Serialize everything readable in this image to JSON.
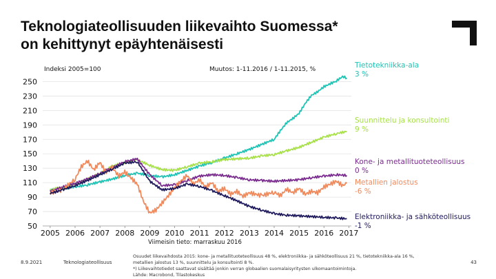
{
  "title": {
    "line1": "Teknologiateollisuuden liikevaihto Suomessa*",
    "line2": "on kehittynyt epäyhtenäisesti"
  },
  "chart_data": {
    "type": "line",
    "index_label": "Indeksi 2005=100",
    "change_label": "Muutos: 1-11.2016 / 1-11.2015, %",
    "latest_label": "Viimeisin tieto: marraskuu 2016",
    "ylim": [
      50,
      260
    ],
    "yticks": [
      50,
      70,
      90,
      110,
      130,
      150,
      170,
      190,
      210,
      230,
      250
    ],
    "xlim": [
      2004.7,
      2017.1
    ],
    "xticks": [
      "2005",
      "2006",
      "2007",
      "2008",
      "2009",
      "2010",
      "2011",
      "2012",
      "2013",
      "2014",
      "2015",
      "2016",
      "2017"
    ],
    "series": [
      {
        "name": "Tietotekniikka-ala",
        "change": "3 %",
        "color": "#1ec3b4",
        "points": [
          [
            2005.0,
            100
          ],
          [
            2005.5,
            102
          ],
          [
            2006.0,
            104
          ],
          [
            2006.5,
            107
          ],
          [
            2007.0,
            111
          ],
          [
            2007.5,
            115
          ],
          [
            2008.0,
            120
          ],
          [
            2008.5,
            123
          ],
          [
            2009.0,
            120
          ],
          [
            2009.5,
            118
          ],
          [
            2010.0,
            121
          ],
          [
            2010.5,
            127
          ],
          [
            2011.0,
            133
          ],
          [
            2011.5,
            138
          ],
          [
            2012.0,
            144
          ],
          [
            2012.5,
            150
          ],
          [
            2013.0,
            156
          ],
          [
            2013.5,
            163
          ],
          [
            2014.0,
            170
          ],
          [
            2014.25,
            182
          ],
          [
            2014.5,
            193
          ],
          [
            2014.75,
            199
          ],
          [
            2015.0,
            206
          ],
          [
            2015.25,
            220
          ],
          [
            2015.5,
            231
          ],
          [
            2015.75,
            236
          ],
          [
            2016.0,
            243
          ],
          [
            2016.5,
            251
          ],
          [
            2016.75,
            257
          ],
          [
            2016.92,
            255
          ]
        ]
      },
      {
        "name": "Suunnittelu ja konsultointi",
        "change": "9 %",
        "color": "#a8e04a",
        "points": [
          [
            2005.0,
            100
          ],
          [
            2005.5,
            104
          ],
          [
            2006.0,
            108
          ],
          [
            2006.5,
            115
          ],
          [
            2007.0,
            123
          ],
          [
            2007.5,
            133
          ],
          [
            2008.0,
            138
          ],
          [
            2008.5,
            142
          ],
          [
            2009.0,
            134
          ],
          [
            2009.5,
            128
          ],
          [
            2010.0,
            127
          ],
          [
            2010.5,
            132
          ],
          [
            2011.0,
            137
          ],
          [
            2011.5,
            139
          ],
          [
            2012.0,
            142
          ],
          [
            2012.5,
            143
          ],
          [
            2013.0,
            144
          ],
          [
            2013.5,
            147
          ],
          [
            2014.0,
            149
          ],
          [
            2014.5,
            154
          ],
          [
            2015.0,
            159
          ],
          [
            2015.5,
            166
          ],
          [
            2016.0,
            173
          ],
          [
            2016.5,
            178
          ],
          [
            2016.92,
            181
          ]
        ]
      },
      {
        "name": "Kone- ja metallituoteteollisuus",
        "change": "0 %",
        "color": "#7a2c8e",
        "points": [
          [
            2005.0,
            98
          ],
          [
            2005.5,
            104
          ],
          [
            2006.0,
            109
          ],
          [
            2006.5,
            115
          ],
          [
            2007.0,
            123
          ],
          [
            2007.5,
            131
          ],
          [
            2008.0,
            139
          ],
          [
            2008.5,
            143
          ],
          [
            2009.0,
            121
          ],
          [
            2009.5,
            106
          ],
          [
            2010.0,
            107
          ],
          [
            2010.5,
            113
          ],
          [
            2011.0,
            119
          ],
          [
            2011.5,
            121
          ],
          [
            2012.0,
            120
          ],
          [
            2012.5,
            117
          ],
          [
            2013.0,
            114
          ],
          [
            2013.5,
            113
          ],
          [
            2014.0,
            112
          ],
          [
            2014.5,
            113
          ],
          [
            2015.0,
            114
          ],
          [
            2015.5,
            117
          ],
          [
            2016.0,
            119
          ],
          [
            2016.5,
            121
          ],
          [
            2016.92,
            120
          ]
        ]
      },
      {
        "name": "Metallien jalostus",
        "change": "-6 %",
        "color": "#f08a5d",
        "points": [
          [
            2005.0,
            96
          ],
          [
            2005.5,
            100
          ],
          [
            2006.0,
            115
          ],
          [
            2006.25,
            132
          ],
          [
            2006.5,
            140
          ],
          [
            2006.75,
            128
          ],
          [
            2007.0,
            138
          ],
          [
            2007.25,
            124
          ],
          [
            2007.5,
            131
          ],
          [
            2007.75,
            119
          ],
          [
            2008.0,
            125
          ],
          [
            2008.5,
            108
          ],
          [
            2008.75,
            84
          ],
          [
            2009.0,
            68
          ],
          [
            2009.25,
            72
          ],
          [
            2009.5,
            82
          ],
          [
            2009.75,
            92
          ],
          [
            2010.0,
            103
          ],
          [
            2010.25,
            112
          ],
          [
            2010.5,
            120
          ],
          [
            2010.75,
            108
          ],
          [
            2011.0,
            114
          ],
          [
            2011.25,
            104
          ],
          [
            2011.5,
            110
          ],
          [
            2011.75,
            98
          ],
          [
            2012.0,
            102
          ],
          [
            2012.25,
            94
          ],
          [
            2012.5,
            98
          ],
          [
            2012.75,
            91
          ],
          [
            2013.0,
            96
          ],
          [
            2013.5,
            92
          ],
          [
            2014.0,
            97
          ],
          [
            2014.25,
            92
          ],
          [
            2014.5,
            101
          ],
          [
            2014.75,
            96
          ],
          [
            2015.0,
            102
          ],
          [
            2015.25,
            94
          ],
          [
            2015.5,
            98
          ],
          [
            2015.75,
            96
          ],
          [
            2016.0,
            104
          ],
          [
            2016.25,
            108
          ],
          [
            2016.5,
            112
          ],
          [
            2016.75,
            106
          ],
          [
            2016.92,
            109
          ]
        ]
      },
      {
        "name": "Elektroniikka- ja sähköteollisuus",
        "change": "-1 %",
        "color": "#1f1a5c",
        "points": [
          [
            2005.0,
            95
          ],
          [
            2005.5,
            100
          ],
          [
            2006.0,
            106
          ],
          [
            2006.5,
            113
          ],
          [
            2007.0,
            121
          ],
          [
            2007.5,
            129
          ],
          [
            2008.0,
            137
          ],
          [
            2008.5,
            139
          ],
          [
            2009.0,
            112
          ],
          [
            2009.5,
            100
          ],
          [
            2010.0,
            102
          ],
          [
            2010.5,
            108
          ],
          [
            2011.0,
            105
          ],
          [
            2011.5,
            99
          ],
          [
            2012.0,
            92
          ],
          [
            2012.5,
            85
          ],
          [
            2013.0,
            77
          ],
          [
            2013.5,
            72
          ],
          [
            2014.0,
            67
          ],
          [
            2014.5,
            65
          ],
          [
            2015.0,
            64
          ],
          [
            2015.5,
            63
          ],
          [
            2016.0,
            62
          ],
          [
            2016.5,
            61
          ],
          [
            2016.92,
            60
          ]
        ]
      }
    ]
  },
  "footer": {
    "date": "8.9.2021",
    "org": "Teknologiateollisuus",
    "note1": "Osuudet liikevaihdosta 2015: kone- ja metallituoteteollisuus 48 %, elektroniikka- ja sähköteollisuus 21 %, tietotekniikka-ala 16 %,",
    "note2": "metallien jalostus 13 %, suunnittelu ja konsultointi 8 %.",
    "note3": "*) Liikevaihtotiedot saattavat sisältää jonkin verran globaalien suomalaisyritysten ulkomaantoimintoja.",
    "note4": "Lähde: Macrobond, Tilastokeskus",
    "page": "43"
  }
}
